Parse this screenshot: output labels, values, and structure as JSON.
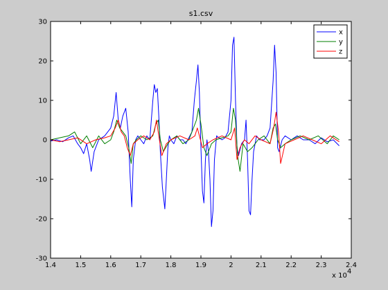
{
  "chart_data": {
    "type": "line",
    "title": "s1.csv",
    "xlabel": "",
    "ylabel": "",
    "x_exponent_label": "x 10",
    "x_exponent_power": "4",
    "xlim": [
      1.4,
      2.4
    ],
    "ylim": [
      -30,
      30
    ],
    "x_ticks": [
      "1.4",
      "1.5",
      "1.6",
      "1.7",
      "1.8",
      "1.9",
      "2",
      "2.1",
      "2.2",
      "2.3",
      "2.4"
    ],
    "y_ticks": [
      "30",
      "20",
      "10",
      "0",
      "-10",
      "-20",
      "-30"
    ],
    "grid": false,
    "legend_position": "top-right",
    "series": [
      {
        "name": "x",
        "color": "#0000ff",
        "x": [
          1.4,
          1.42,
          1.44,
          1.46,
          1.475,
          1.49,
          1.5,
          1.51,
          1.52,
          1.53,
          1.535,
          1.545,
          1.56,
          1.58,
          1.6,
          1.61,
          1.618,
          1.625,
          1.632,
          1.64,
          1.65,
          1.658,
          1.665,
          1.67,
          1.675,
          1.683,
          1.69,
          1.7,
          1.71,
          1.72,
          1.73,
          1.74,
          1.745,
          1.75,
          1.755,
          1.76,
          1.765,
          1.772,
          1.78,
          1.785,
          1.79,
          1.795,
          1.8,
          1.81,
          1.82,
          1.83,
          1.84,
          1.85,
          1.86,
          1.87,
          1.878,
          1.885,
          1.89,
          1.895,
          1.9,
          1.905,
          1.91,
          1.915,
          1.92,
          1.925,
          1.93,
          1.935,
          1.94,
          1.945,
          1.952,
          1.96,
          1.97,
          1.98,
          1.99,
          2.0,
          2.005,
          2.01,
          2.015,
          2.02,
          2.025,
          2.035,
          2.045,
          2.05,
          2.055,
          2.06,
          2.065,
          2.07,
          2.075,
          2.085,
          2.095,
          2.11,
          2.12,
          2.13,
          2.14,
          2.145,
          2.15,
          2.155,
          2.16,
          2.17,
          2.18,
          2.2,
          2.22,
          2.24,
          2.26,
          2.28,
          2.3,
          2.32,
          2.34,
          2.36
        ],
        "values": [
          -0.3,
          0,
          -0.5,
          0.5,
          1,
          -1,
          -2,
          -3.5,
          -1,
          -5,
          -8,
          -3,
          0,
          1,
          3,
          6,
          12,
          5,
          3,
          6,
          8,
          2,
          -10,
          -17,
          -5,
          0,
          1,
          0,
          -1,
          1,
          0,
          10,
          14,
          12,
          13,
          6,
          -3,
          -12,
          -17.5,
          -10,
          -2,
          1,
          0,
          -1,
          1,
          0,
          0,
          -1,
          0.5,
          2,
          10,
          15,
          19,
          12,
          -2,
          -13,
          -16,
          -5,
          0,
          -3,
          -10,
          -22,
          -18,
          -5,
          1,
          0.5,
          0,
          0.5,
          2,
          10,
          24,
          26,
          10,
          -2,
          -4,
          -1,
          0,
          5,
          -5,
          -18,
          -19,
          -10,
          -3,
          1,
          0,
          0,
          1,
          3,
          15,
          24,
          17,
          -2,
          -3,
          0,
          1,
          0,
          1,
          0,
          0,
          -1,
          0.5,
          -0.5,
          0,
          -1.5
        ]
      },
      {
        "name": "y",
        "color": "#007f00",
        "x": [
          1.4,
          1.43,
          1.46,
          1.48,
          1.5,
          1.52,
          1.54,
          1.56,
          1.58,
          1.6,
          1.61,
          1.62,
          1.63,
          1.64,
          1.65,
          1.66,
          1.668,
          1.675,
          1.685,
          1.7,
          1.72,
          1.74,
          1.75,
          1.758,
          1.765,
          1.775,
          1.79,
          1.8,
          1.82,
          1.84,
          1.86,
          1.875,
          1.885,
          1.892,
          1.9,
          1.91,
          1.92,
          1.935,
          1.95,
          1.97,
          1.99,
          2.0,
          2.008,
          2.015,
          2.022,
          2.03,
          2.04,
          2.055,
          2.07,
          2.09,
          2.11,
          2.13,
          2.14,
          2.148,
          2.155,
          2.165,
          2.18,
          2.2,
          2.23,
          2.26,
          2.29,
          2.32,
          2.34,
          2.36
        ],
        "values": [
          0,
          0.5,
          1,
          2,
          -1,
          1,
          -2,
          1,
          -1,
          0,
          2,
          5,
          3,
          2,
          1,
          -2,
          -6,
          -1,
          0,
          1,
          0,
          1,
          4,
          5,
          0,
          -3,
          -1,
          0,
          1,
          -1,
          0,
          3,
          5,
          8,
          4,
          -2,
          -4,
          -1,
          0,
          0.5,
          1,
          2,
          8,
          5,
          -4,
          -8,
          -1,
          -3,
          -2,
          0,
          1,
          -1,
          3,
          4,
          0,
          -2,
          -1,
          0,
          1,
          0,
          1,
          -1,
          1,
          0
        ]
      },
      {
        "name": "z",
        "color": "#ff0000",
        "x": [
          1.4,
          1.43,
          1.46,
          1.49,
          1.52,
          1.55,
          1.58,
          1.6,
          1.615,
          1.625,
          1.635,
          1.645,
          1.655,
          1.665,
          1.675,
          1.69,
          1.71,
          1.73,
          1.745,
          1.752,
          1.76,
          1.77,
          1.785,
          1.8,
          1.83,
          1.86,
          1.88,
          1.888,
          1.895,
          1.905,
          1.92,
          1.94,
          1.97,
          2.0,
          2.012,
          2.02,
          2.03,
          2.045,
          2.06,
          2.08,
          2.1,
          2.13,
          2.142,
          2.15,
          2.158,
          2.165,
          2.18,
          2.21,
          2.24,
          2.27,
          2.3,
          2.33,
          2.36
        ],
        "values": [
          0,
          -0.5,
          0,
          0.5,
          -1,
          0,
          0.5,
          1,
          3,
          5,
          2,
          1,
          -2,
          -4,
          -1,
          0,
          1,
          0,
          2,
          5,
          1,
          -4,
          -1,
          0,
          1,
          0,
          1,
          3,
          1,
          -2,
          -1,
          0,
          1,
          0,
          3,
          -5,
          -2,
          0,
          -1,
          1,
          0,
          -1,
          3,
          7,
          2,
          -6,
          -1,
          0,
          1,
          0,
          -1,
          1,
          -0.5
        ]
      }
    ]
  }
}
